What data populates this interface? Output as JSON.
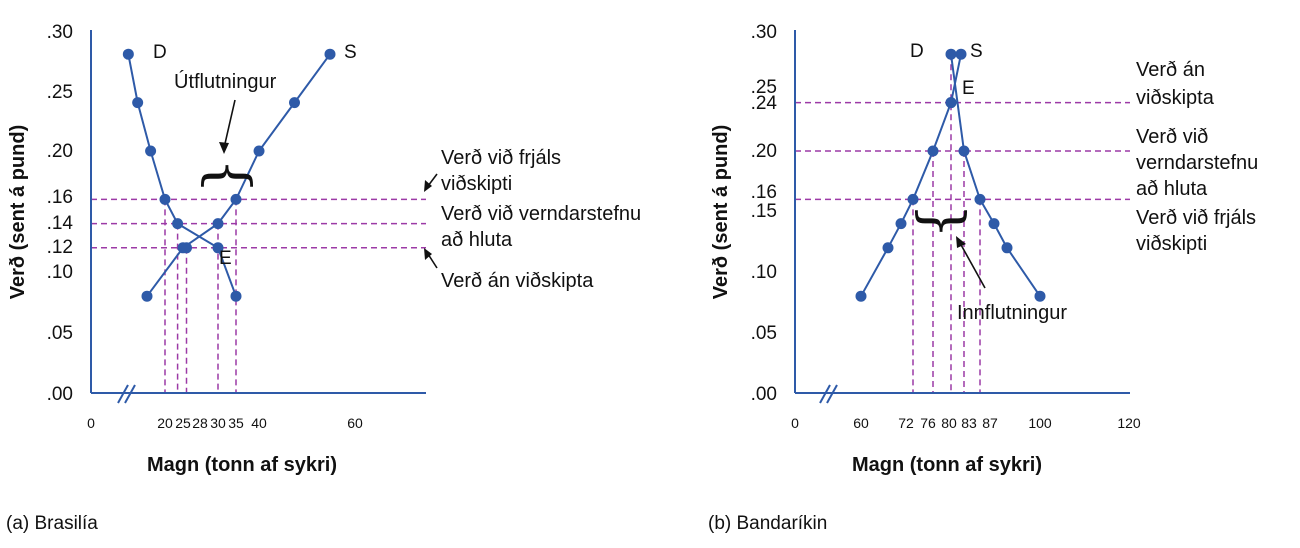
{
  "chart_data": [
    {
      "type": "line",
      "caption": "(a) Brasilía",
      "xlabel": "Magn (tonn af sykri)",
      "ylabel": "Verð (sent á pund)",
      "xlim": [
        0,
        70
      ],
      "x_break": true,
      "ylim": [
        0,
        0.3
      ],
      "y_ticks": [
        ".00",
        ".05",
        ".10",
        ".12",
        ".14",
        ".16",
        ".20",
        ".25",
        ".30"
      ],
      "x_ticks": [
        "0",
        "20",
        "25",
        "28",
        "30",
        "35",
        "40",
        "60"
      ],
      "series": [
        {
          "name": "D",
          "x": [
            10,
            12.5,
            16,
            20,
            23.5,
            30,
            35
          ],
          "y": [
            0.28,
            0.24,
            0.2,
            0.16,
            0.14,
            0.12,
            0.08
          ]
        },
        {
          "name": "S",
          "x": [
            15,
            25,
            30,
            35,
            40,
            45,
            50
          ],
          "y": [
            0.08,
            0.12,
            0.14,
            0.16,
            0.2,
            0.24,
            0.28
          ]
        }
      ],
      "equilibrium": {
        "label": "E",
        "x": 25.5,
        "y": 0.12
      },
      "price_lines": [
        0.16,
        0.14,
        0.12
      ],
      "quantity_lines": [
        20,
        23.5,
        25.5,
        30,
        35
      ],
      "annotations": [
        "Verð við frjáls viðskipti",
        "Verð við verndarstefnu að hluta",
        "Verð án viðskipta",
        "Útflutningur"
      ]
    },
    {
      "type": "line",
      "caption": "(b) Bandaríkin",
      "xlabel": "Magn (tonn af sykri)",
      "ylabel": "Verð (sent á pund)",
      "xlim": [
        0,
        120
      ],
      "x_break": true,
      "ylim": [
        0,
        0.3
      ],
      "y_ticks": [
        ".00",
        ".05",
        ".10",
        ".15",
        ".16",
        ".20",
        ".24",
        ".25",
        ".30"
      ],
      "x_ticks": [
        "0",
        "60",
        "72",
        "76",
        "80",
        "83",
        "87",
        "100",
        "120"
      ],
      "series": [
        {
          "name": "D",
          "x": [
            80,
            83,
            87,
            93,
            96,
            100
          ],
          "y": [
            0.28,
            0.2,
            0.16,
            0.14,
            0.12,
            0.08
          ]
        },
        {
          "name": "S",
          "x": [
            60,
            66,
            70,
            72,
            76,
            80,
            84
          ],
          "y": [
            0.08,
            0.12,
            0.14,
            0.16,
            0.2,
            0.24,
            0.28
          ]
        }
      ],
      "equilibrium": {
        "label": "E",
        "x": 80,
        "y": 0.24
      },
      "price_lines": [
        0.24,
        0.2,
        0.16
      ],
      "quantity_lines": [
        72,
        76,
        80,
        83,
        87
      ],
      "annotations": [
        "Verð án viðskipta",
        "Verð við verndarstefnu að hluta",
        "Verð við frjáls viðskipti",
        "Innflutningur"
      ]
    }
  ],
  "colors": {
    "line": "#2e5aa8",
    "point": "#2e5aa8",
    "dashed": "#9c3aa6",
    "axis": "#2e5aa8",
    "text": "#111111"
  }
}
